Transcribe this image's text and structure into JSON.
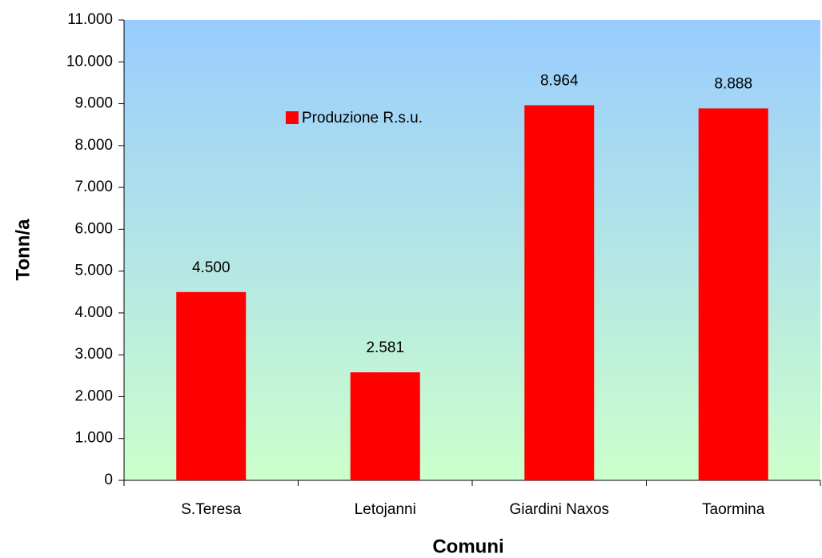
{
  "chart_data": {
    "type": "bar",
    "x_label": "Comuni",
    "y_label": "Tonn/a",
    "categories": [
      "S.Teresa",
      "Letojanni",
      "Giardini Naxos",
      "Taormina"
    ],
    "series": [
      {
        "name": "Produzione R.s.u.",
        "color": "#ff0000",
        "values": [
          4500,
          2581,
          8964,
          8888
        ],
        "value_labels": [
          "4.500",
          "2.581",
          "8.964",
          "8.888"
        ]
      }
    ],
    "ylim": [
      0,
      11000
    ],
    "yticks": [
      0,
      {
        "value": 1000,
        "label": "1.000"
      },
      {
        "value": 2000,
        "label": "2.000"
      },
      {
        "value": 3000,
        "label": "3.000"
      },
      {
        "value": 4000,
        "label": "4.000"
      },
      {
        "value": 5000,
        "label": "5.000"
      },
      {
        "value": 6000,
        "label": "6.000"
      },
      {
        "value": 7000,
        "label": "7.000"
      },
      {
        "value": 8000,
        "label": "8.000"
      },
      {
        "value": 9000,
        "label": "9.000"
      },
      {
        "value": 10000,
        "label": "10.000"
      },
      {
        "value": 11000,
        "label": "11.000"
      }
    ],
    "grid": false
  }
}
